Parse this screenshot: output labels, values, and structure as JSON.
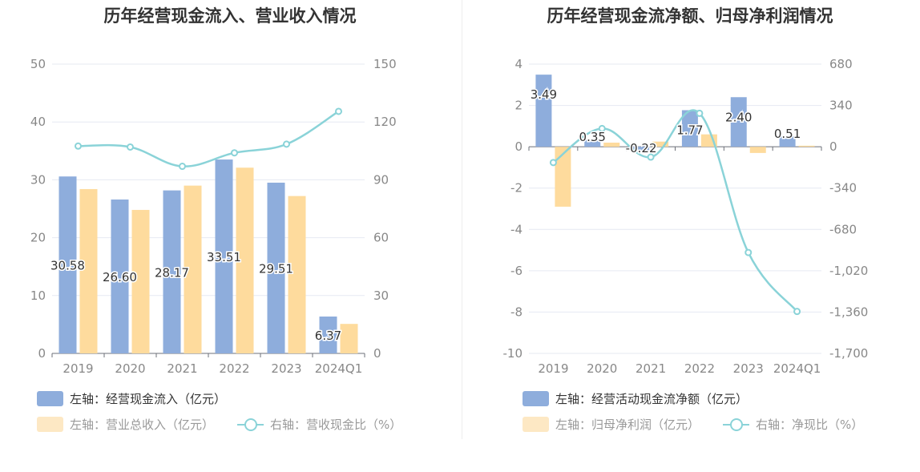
{
  "chart_data": [
    {
      "type": "bar+line",
      "title": "历年经营现金流入、营业收入情况",
      "categories": [
        "2019",
        "2020",
        "2021",
        "2022",
        "2023",
        "2024Q1"
      ],
      "left_axis": {
        "ticks": [
          "0",
          "10",
          "20",
          "30",
          "40",
          "50"
        ],
        "ylim": [
          0,
          50
        ]
      },
      "right_axis": {
        "ticks": [
          "0",
          "30",
          "60",
          "90",
          "120",
          "150"
        ],
        "ylim": [
          0,
          150
        ]
      },
      "series": [
        {
          "name": "左轴：经营现金流入（亿元）",
          "axis": "left",
          "kind": "bar",
          "color": "#8eaddc",
          "values": [
            30.58,
            26.6,
            28.17,
            33.51,
            29.51,
            6.37
          ],
          "labels": [
            "30.58",
            "26.60",
            "28.17",
            "33.51",
            "29.51",
            "6.37"
          ]
        },
        {
          "name": "左轴：营业总收入（亿元）",
          "axis": "left",
          "kind": "bar",
          "color": "#fedb9d",
          "values": [
            28.4,
            24.8,
            29.0,
            32.1,
            27.2,
            5.1
          ]
        },
        {
          "name": "右轴：营收现金比（%）",
          "axis": "right",
          "kind": "line",
          "color": "#8ad3d8",
          "values": [
            107.5,
            107.0,
            97.0,
            104.0,
            108.5,
            125.5
          ]
        }
      ]
    },
    {
      "type": "bar+line",
      "title": "历年经营现金流净额、归母净利润情况",
      "categories": [
        "2019",
        "2020",
        "2021",
        "2022",
        "2023",
        "2024Q1"
      ],
      "left_axis": {
        "ticks": [
          "-10",
          "-8",
          "-6",
          "-4",
          "-2",
          "0",
          "2",
          "4"
        ],
        "ylim": [
          -10,
          4
        ]
      },
      "right_axis": {
        "ticks": [
          "-1,700",
          "-1,360",
          "-1,020",
          "-680",
          "-340",
          "0",
          "340",
          "680"
        ],
        "ylim": [
          -1700,
          680
        ]
      },
      "series": [
        {
          "name": "左轴：经营活动现金流净额（亿元）",
          "axis": "left",
          "kind": "bar",
          "color": "#8eaddc",
          "values": [
            3.49,
            0.35,
            -0.22,
            1.77,
            2.4,
            0.51
          ],
          "labels": [
            "3.49",
            "0.35",
            "-0.22",
            "1.77",
            "2.40",
            "0.51"
          ]
        },
        {
          "name": "左轴：归母净利润（亿元）",
          "axis": "left",
          "kind": "bar",
          "color": "#fedb9d",
          "values": [
            -2.9,
            0.2,
            0.25,
            0.6,
            -0.3,
            0.05
          ]
        },
        {
          "name": "右轴：净现比（%）",
          "axis": "right",
          "kind": "line",
          "color": "#8ad3d8",
          "values": [
            -130,
            150,
            -85,
            275,
            -870,
            -1355
          ]
        }
      ]
    }
  ]
}
